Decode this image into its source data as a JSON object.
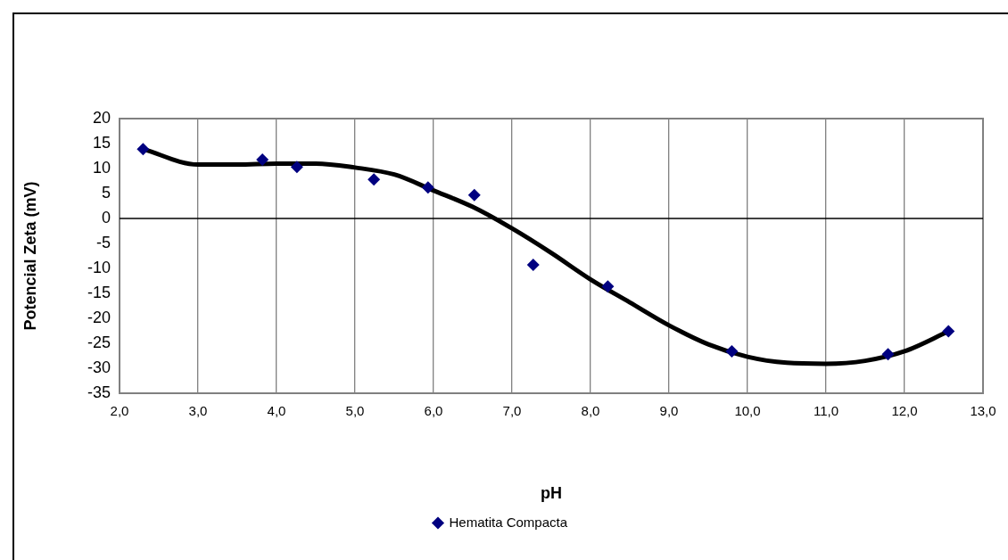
{
  "chart_data": {
    "type": "scatter",
    "xlabel": "pH",
    "ylabel": "Potencial Zeta (mV)",
    "xlim": [
      2,
      13
    ],
    "xticks": [
      {
        "value": 2,
        "label": "2,0"
      },
      {
        "value": 3,
        "label": "3,0"
      },
      {
        "value": 4,
        "label": "4,0"
      },
      {
        "value": 5,
        "label": "5,0"
      },
      {
        "value": 6,
        "label": "6,0"
      },
      {
        "value": 7,
        "label": "7,0"
      },
      {
        "value": 8,
        "label": "8,0"
      },
      {
        "value": 9,
        "label": "9,0"
      },
      {
        "value": 10,
        "label": "10,0"
      },
      {
        "value": 11,
        "label": "11,0"
      },
      {
        "value": 12,
        "label": "12,0"
      },
      {
        "value": 13,
        "label": "13,0"
      }
    ],
    "ylim": [
      -35,
      20
    ],
    "yticks": [
      -35,
      -30,
      -25,
      -20,
      -15,
      -10,
      -5,
      0,
      5,
      10,
      15,
      20
    ],
    "grid": "x",
    "legend": "bottom",
    "marker": "diamond",
    "ref_lines": [
      {
        "axis": "y",
        "value": 0,
        "color": "#000000"
      }
    ],
    "series": [
      {
        "name": "Hematita Compacta",
        "color": "#000080",
        "x": [
          2.3,
          3.82,
          4.26,
          5.24,
          5.93,
          6.52,
          7.27,
          8.22,
          9.8,
          11.79,
          12.56
        ],
        "values": [
          13.9,
          11.8,
          10.3,
          7.8,
          6.2,
          4.7,
          -9.3,
          -13.6,
          -26.6,
          -27.2,
          -22.6
        ]
      },
      {
        "type": "line",
        "color": "#000000",
        "marker": "none",
        "x": [
          2.3,
          3.0,
          3.5,
          4.0,
          4.5,
          5.0,
          5.5,
          6.0,
          6.5,
          7.0,
          7.5,
          8.0,
          8.5,
          9.0,
          9.5,
          10.0,
          10.5,
          11.0,
          11.5,
          12.0,
          12.56
        ],
        "values": [
          13.9,
          10.8,
          10.8,
          11,
          11,
          10.2,
          8.8,
          5.6,
          2.3,
          -2.0,
          -6.9,
          -12.2,
          -16.8,
          -21.4,
          -25.2,
          -27.7,
          -28.9,
          -29.1,
          -28.5,
          -26.6,
          -22.6
        ]
      }
    ]
  }
}
